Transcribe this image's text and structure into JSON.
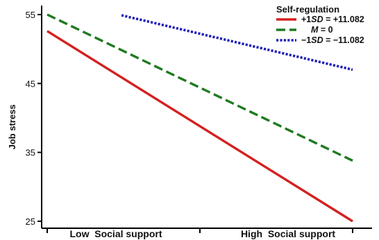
{
  "chart_data": {
    "type": "line",
    "title": "",
    "xlabel": "",
    "ylabel": "Job stress",
    "categories": [
      "Low  Social support",
      "High  Social support"
    ],
    "ylim": [
      25,
      55
    ],
    "yticks": [
      "25",
      "35",
      "45",
      "55"
    ],
    "grid": false,
    "legend": {
      "title": "Self-regulation",
      "position": "top-right"
    },
    "series": [
      {
        "name": "+1SD = +11.082",
        "name_parts": [
          {
            "text": "+1",
            "italic": false
          },
          {
            "text": "SD",
            "italic": true
          },
          {
            "text": " = +11.082",
            "italic": false
          }
        ],
        "x": [
          "low",
          "high"
        ],
        "values": [
          52.6,
          25.0
        ],
        "color": "#d42020",
        "style": "solid"
      },
      {
        "name": "M = 0",
        "name_parts": [
          {
            "text": "M",
            "italic": true
          },
          {
            "text": "  =  0",
            "italic": false
          }
        ],
        "x": [
          "low",
          "high"
        ],
        "values": [
          55.0,
          33.8
        ],
        "color": "#1f7a1f",
        "style": "dashed"
      },
      {
        "name": "−1SD = −11.082",
        "name_parts": [
          {
            "text": "−1",
            "italic": false
          },
          {
            "text": "SD",
            "italic": true
          },
          {
            "text": " = −11.082",
            "italic": false
          }
        ],
        "x": [
          "mid",
          "high"
        ],
        "values": [
          54.9,
          47.0
        ],
        "color": "#1f1fb8",
        "style": "dotted"
      }
    ]
  }
}
